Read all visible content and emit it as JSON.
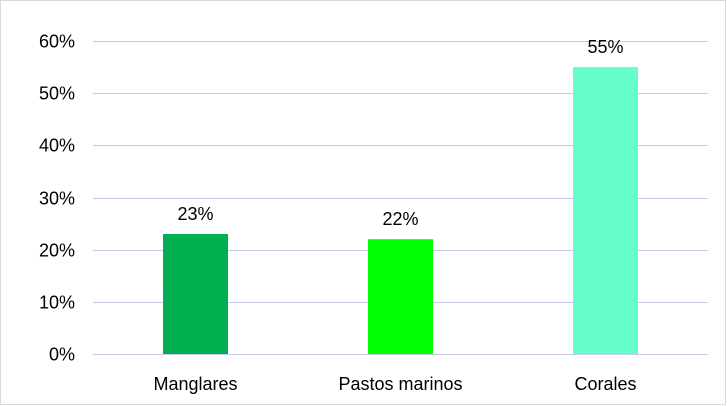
{
  "chart_data": {
    "type": "bar",
    "categories": [
      "Manglares",
      "Pastos marinos",
      "Corales"
    ],
    "values": [
      23,
      22,
      55
    ],
    "data_labels": [
      "23%",
      "22%",
      "55%"
    ],
    "ylim": [
      0,
      60
    ],
    "y_ticks": [
      {
        "value": 0,
        "label": "0%"
      },
      {
        "value": 10,
        "label": "10%"
      },
      {
        "value": 20,
        "label": "20%"
      },
      {
        "value": 30,
        "label": "30%"
      },
      {
        "value": 40,
        "label": "40%"
      },
      {
        "value": 50,
        "label": "50%"
      },
      {
        "value": 60,
        "label": "60%"
      }
    ],
    "colors": [
      "#00b050",
      "#00ff00",
      "#66ffcc"
    ],
    "gridline_color": "#c8c8e8",
    "grid": true,
    "legend": "none",
    "title": "",
    "xlabel": "",
    "ylabel": ""
  }
}
